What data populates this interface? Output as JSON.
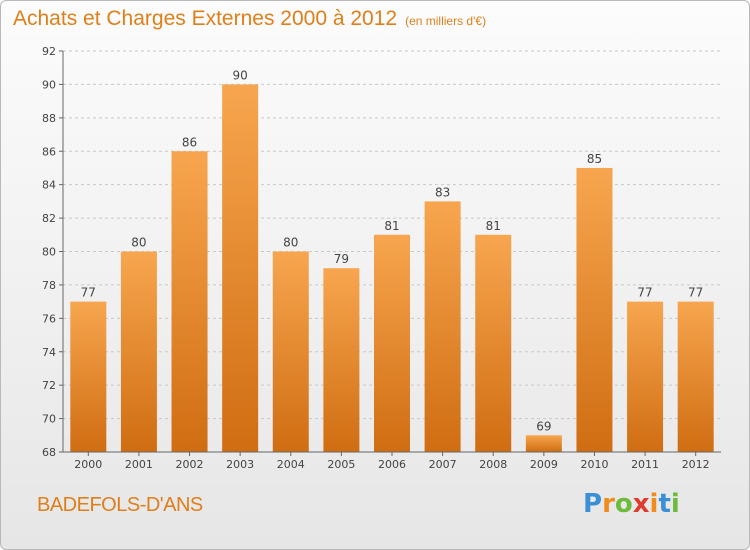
{
  "chart_data": {
    "type": "bar",
    "title": "Achats et Charges Externes 2000 à 2012",
    "subtitle": "(en milliers d'€)",
    "categories": [
      "2000",
      "2001",
      "2002",
      "2003",
      "2004",
      "2005",
      "2006",
      "2007",
      "2008",
      "2009",
      "2010",
      "2011",
      "2012"
    ],
    "values": [
      77,
      80,
      86,
      90,
      80,
      79,
      81,
      83,
      81,
      69,
      85,
      77,
      77
    ],
    "ylim": [
      68,
      92
    ],
    "yticks": [
      68,
      70,
      72,
      74,
      76,
      78,
      80,
      82,
      84,
      86,
      88,
      90,
      92
    ],
    "xlabel": "",
    "ylabel": "",
    "grid": "horizontal dashed",
    "bar_color_top": "#f7a64f",
    "bar_color_bottom": "#d06d12"
  },
  "location": "BADEFOLS-D'ANS",
  "logo": {
    "letters": [
      "P",
      "r",
      "o",
      "x",
      "i",
      "t",
      "i"
    ],
    "colors": [
      "#3a8fd6",
      "#f08c1e",
      "#6cbb3c",
      "#e03c2d",
      "#f08c1e",
      "#3a8fd6",
      "#6cbb3c"
    ]
  },
  "colors": {
    "accent": "#e07f1a",
    "axis": "#666666",
    "grid": "#c8c8c8",
    "label": "#444444"
  }
}
